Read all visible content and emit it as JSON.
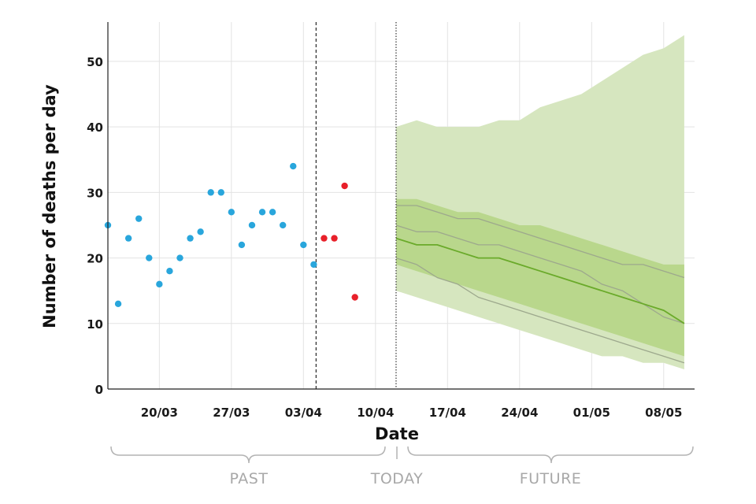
{
  "chart_data": {
    "type": "scatter",
    "title": "",
    "xlabel": "Date",
    "ylabel": "Number of deaths per day",
    "ylim": [
      0,
      56
    ],
    "yticks": [
      "0",
      "10",
      "20",
      "30",
      "40",
      "50"
    ],
    "xlim": [
      "2020-03-15",
      "2020-05-11"
    ],
    "xticks": [
      {
        "date": "2020-03-20",
        "label": "20/03"
      },
      {
        "date": "2020-03-27",
        "label": "27/03"
      },
      {
        "date": "2020-04-03",
        "label": "03/04"
      },
      {
        "date": "2020-04-10",
        "label": "10/04"
      },
      {
        "date": "2020-04-17",
        "label": "17/04"
      },
      {
        "date": "2020-04-24",
        "label": "24/04"
      },
      {
        "date": "2020-05-01",
        "label": "01/05"
      },
      {
        "date": "2020-05-08",
        "label": "08/05"
      }
    ],
    "grid": true,
    "colors": {
      "observed": "#29a6dc",
      "recent": "#e8202a",
      "outer_band": "#d6e6bf",
      "inner_band": "#b9d78c",
      "median": "#6aaa2a",
      "sample": "#9da88d"
    },
    "observed": [
      [
        "2020-03-15",
        25
      ],
      [
        "2020-03-16",
        13
      ],
      [
        "2020-03-17",
        23
      ],
      [
        "2020-03-18",
        26
      ],
      [
        "2020-03-19",
        20
      ],
      [
        "2020-03-20",
        16
      ],
      [
        "2020-03-21",
        18
      ],
      [
        "2020-03-22",
        20
      ],
      [
        "2020-03-23",
        23
      ],
      [
        "2020-03-24",
        24
      ],
      [
        "2020-03-25",
        30
      ],
      [
        "2020-03-26",
        30
      ],
      [
        "2020-03-27",
        27
      ],
      [
        "2020-03-28",
        22
      ],
      [
        "2020-03-29",
        25
      ],
      [
        "2020-03-30",
        27
      ],
      [
        "2020-03-31",
        27
      ],
      [
        "2020-04-01",
        25
      ],
      [
        "2020-04-02",
        34
      ],
      [
        "2020-04-03",
        22
      ],
      [
        "2020-04-04",
        19
      ]
    ],
    "recent": [
      [
        "2020-04-05",
        23
      ],
      [
        "2020-04-06",
        23
      ],
      [
        "2020-04-07",
        31
      ],
      [
        "2020-04-08",
        14
      ]
    ],
    "cutoff_date": "2020-04-04",
    "today_date": "2020-04-12",
    "forecast": {
      "dates": [
        "2020-04-12",
        "2020-04-14",
        "2020-04-16",
        "2020-04-18",
        "2020-04-20",
        "2020-04-22",
        "2020-04-24",
        "2020-04-26",
        "2020-04-28",
        "2020-04-30",
        "2020-05-02",
        "2020-05-04",
        "2020-05-06",
        "2020-05-08",
        "2020-05-10"
      ],
      "outer_upper": [
        40,
        41,
        40,
        40,
        40,
        41,
        41,
        43,
        44,
        45,
        47,
        49,
        51,
        52,
        54
      ],
      "outer_lower": [
        15,
        14,
        13,
        12,
        11,
        10,
        9,
        8,
        7,
        6,
        5,
        5,
        4,
        4,
        3
      ],
      "inner_upper": [
        29,
        29,
        28,
        27,
        27,
        26,
        25,
        25,
        24,
        23,
        22,
        21,
        20,
        19,
        19
      ],
      "inner_lower": [
        19,
        18,
        17,
        16,
        15,
        14,
        13,
        12,
        11,
        10,
        9,
        8,
        7,
        6,
        5
      ],
      "median": [
        23,
        22,
        22,
        21,
        20,
        20,
        19,
        18,
        17,
        16,
        15,
        14,
        13,
        12,
        10
      ],
      "samples": [
        [
          28,
          28,
          27,
          26,
          26,
          25,
          24,
          23,
          22,
          21,
          20,
          19,
          19,
          18,
          17
        ],
        [
          25,
          24,
          24,
          23,
          22,
          22,
          21,
          20,
          19,
          18,
          16,
          15,
          13,
          11,
          10
        ],
        [
          20,
          19,
          17,
          16,
          14,
          13,
          12,
          11,
          10,
          9,
          8,
          7,
          6,
          5,
          4
        ]
      ]
    }
  },
  "annotations": {
    "past_label": "PAST",
    "today_label": "TODAY",
    "future_label": "FUTURE"
  }
}
